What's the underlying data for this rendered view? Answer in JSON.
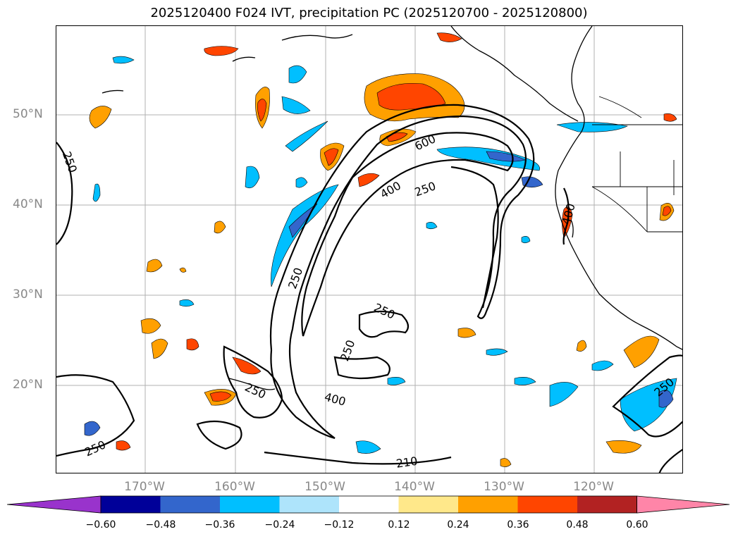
{
  "title": "2025120400 F024 IVT, precipitation PC (2025120700 - 2025120800)",
  "lat_labels": [
    "50°N",
    "40°N",
    "30°N",
    "20°N"
  ],
  "lon_labels": [
    "170°W",
    "160°W",
    "150°W",
    "140°W",
    "130°W",
    "120°W"
  ],
  "contour_labels": {
    "west_250": "250",
    "c600": "600",
    "c400_north": "400",
    "c250_north": "250",
    "c250_inner": "250",
    "c250_mid": "250",
    "c250_south": "250",
    "c250_hawaii": "250",
    "c400_south": "400",
    "c250_sw": "250",
    "c250_bottom": "210",
    "c250_se": "250",
    "c400_coast": "400"
  },
  "colorbar": {
    "ticks": [
      "−0.60",
      "−0.48",
      "−0.36",
      "−0.24",
      "−0.12",
      "0.12",
      "0.24",
      "0.36",
      "0.48",
      "0.60"
    ],
    "colors": [
      "#9933cc",
      "#000099",
      "#3366cc",
      "#00bfff",
      "#aee4fb",
      "#ffffff",
      "#ffe88a",
      "#ffa000",
      "#ff4500",
      "#b22222",
      "#ff85a8"
    ]
  },
  "map_colors": {
    "orange": "#ffa000",
    "red_orange": "#ff4500",
    "light_blue": "#00bfff",
    "pale_blue": "#aee4fb",
    "mid_blue": "#3366cc"
  }
}
